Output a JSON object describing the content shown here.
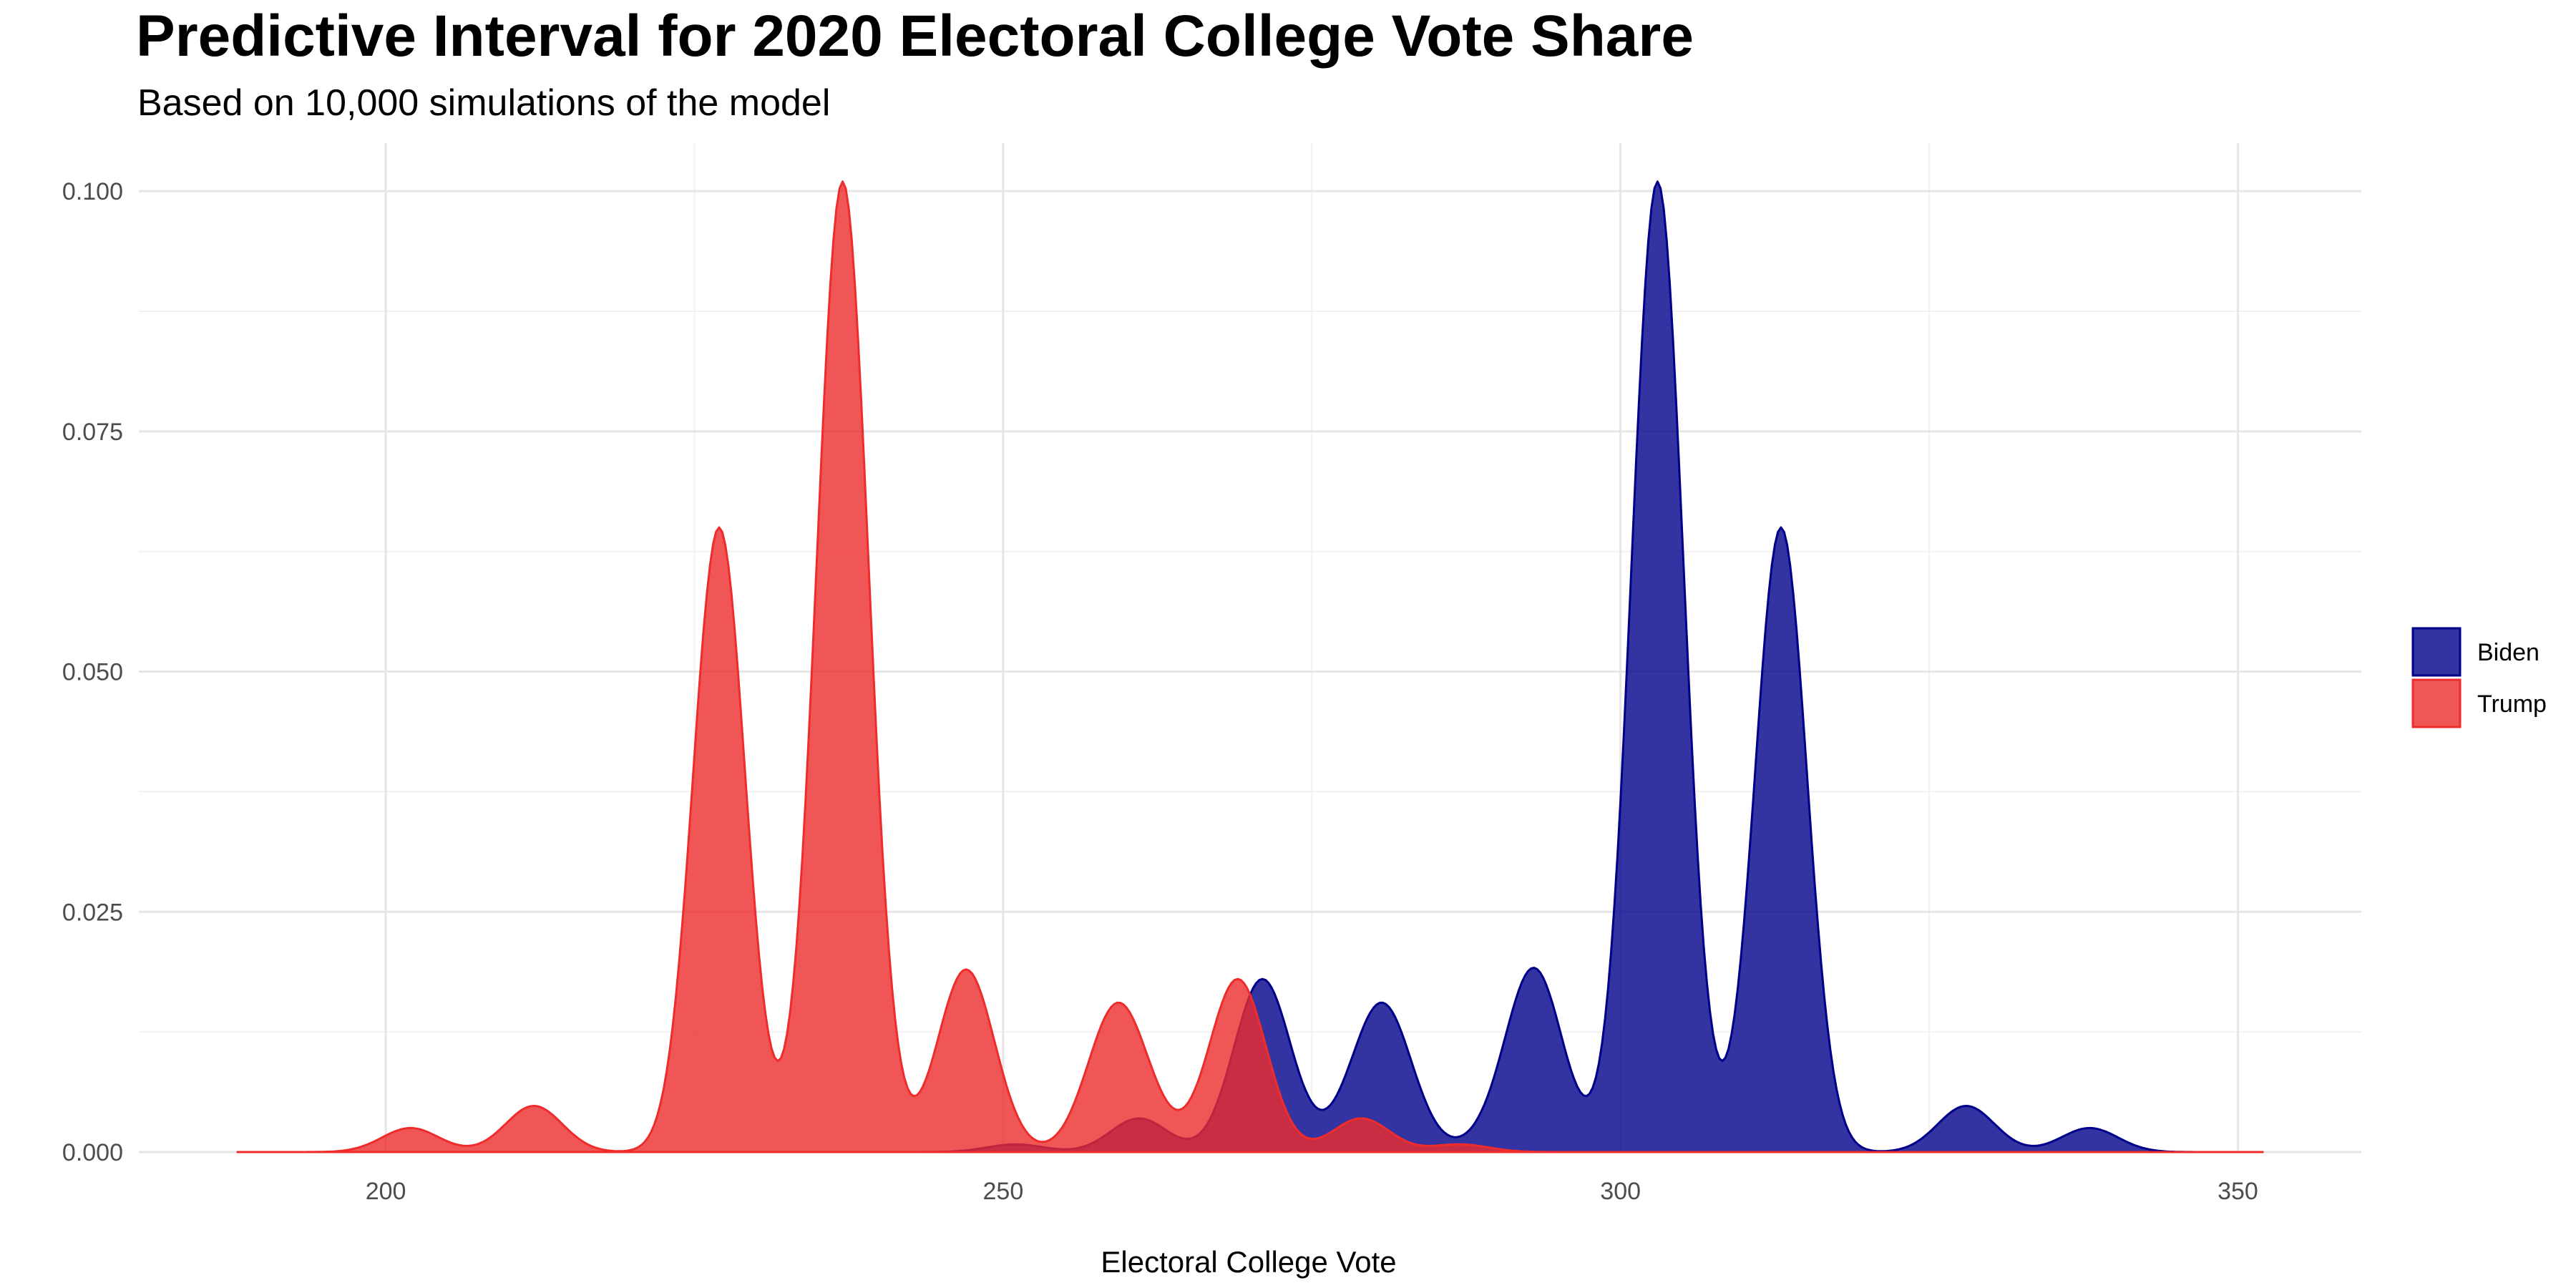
{
  "chart_data": {
    "type": "area",
    "title": "Predictive Interval for 2020 Electoral College Vote Share",
    "subtitle": "Based on 10,000 simulations of the model",
    "xlabel": "Electoral College Vote",
    "ylabel": "",
    "xlim": [
      180,
      360
    ],
    "ylim": [
      0,
      0.105
    ],
    "x_ticks": [
      200,
      250,
      300,
      350
    ],
    "y_ticks": [
      0.0,
      0.025,
      0.05,
      0.075,
      0.1
    ],
    "y_tick_labels": [
      "0.000",
      "0.025",
      "0.050",
      "0.075",
      "0.100"
    ],
    "grid": true,
    "legend_position": "right",
    "legend": [
      "Biden",
      "Trump"
    ],
    "series": [
      {
        "name": "Biden",
        "color": "#00008B",
        "x_range": [
          188,
          352
        ],
        "peaks": [
          {
            "x": 251,
            "y": 0.0008
          },
          {
            "x": 261,
            "y": 0.0035
          },
          {
            "x": 271,
            "y": 0.018
          },
          {
            "x": 279,
            "y": 0.0035
          },
          {
            "x": 281,
            "y": 0.013
          },
          {
            "x": 289,
            "y": 0.0008
          },
          {
            "x": 293,
            "y": 0.019
          },
          {
            "x": 303,
            "y": 0.101
          },
          {
            "x": 313,
            "y": 0.065
          },
          {
            "x": 328,
            "y": 0.0048
          },
          {
            "x": 338,
            "y": 0.0025
          }
        ]
      },
      {
        "name": "Trump",
        "color": "#EE2C2C",
        "x_range": [
          188,
          352
        ],
        "peaks": [
          {
            "x": 202,
            "y": 0.0025
          },
          {
            "x": 212,
            "y": 0.0048
          },
          {
            "x": 227,
            "y": 0.065
          },
          {
            "x": 237,
            "y": 0.101
          },
          {
            "x": 247,
            "y": 0.019
          },
          {
            "x": 259,
            "y": 0.013
          },
          {
            "x": 261,
            "y": 0.0035
          },
          {
            "x": 269,
            "y": 0.018
          },
          {
            "x": 279,
            "y": 0.0035
          },
          {
            "x": 287,
            "y": 0.0008
          }
        ]
      }
    ]
  }
}
